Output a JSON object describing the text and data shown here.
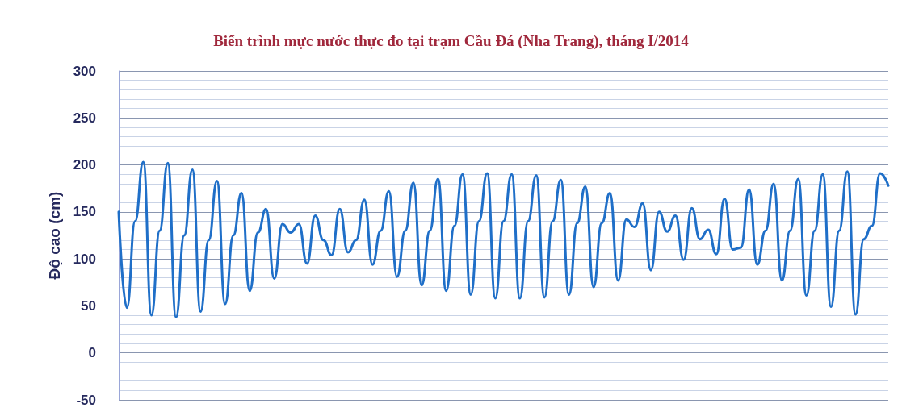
{
  "chart_data": {
    "type": "line",
    "title": "Biến trình mực nước thực đo tại trạm Cầu Đá (Nha Trang), tháng I/2014",
    "ylabel": "Độ cao (cm)",
    "categories": [
      null,
      null,
      null,
      null,
      null,
      null,
      null,
      null,
      null,
      null,
      null,
      null,
      null,
      null,
      null,
      null,
      null,
      null,
      null,
      null,
      null,
      null,
      null,
      null,
      null,
      null,
      null,
      null,
      null,
      null,
      null,
      null,
      null,
      null,
      null,
      null,
      null,
      null,
      null,
      null,
      null,
      null,
      null,
      null,
      null,
      null,
      null,
      null,
      null,
      null,
      null,
      null,
      null,
      null,
      null,
      null,
      null,
      null,
      null,
      null,
      null,
      null,
      null,
      null,
      null,
      null,
      null,
      null,
      null,
      null,
      null,
      null,
      null,
      null,
      null,
      null,
      null,
      null,
      null,
      null,
      null,
      null,
      null,
      null,
      null,
      null,
      null,
      null,
      null,
      null,
      null,
      null,
      null,
      null,
      null
    ],
    "series": [
      {
        "color": "#1f6fc8",
        "values": [
          150,
          48,
          140,
          203,
          40,
          130,
          202,
          38,
          125,
          195,
          44,
          120,
          183,
          52,
          125,
          170,
          66,
          128,
          153,
          79,
          137,
          128,
          137,
          95,
          146,
          120,
          104,
          153,
          107,
          120,
          163,
          94,
          130,
          172,
          81,
          130,
          181,
          72,
          130,
          185,
          66,
          135,
          190,
          62,
          140,
          191,
          58,
          140,
          190,
          58,
          140,
          189,
          59,
          140,
          184,
          62,
          138,
          177,
          70,
          138,
          170,
          77,
          142,
          134,
          159,
          88,
          150,
          129,
          146,
          99,
          154,
          121,
          131,
          105,
          164,
          110,
          112,
          174,
          94,
          130,
          180,
          77,
          130,
          185,
          61,
          130,
          190,
          49,
          130,
          193,
          41,
          121,
          135,
          191,
          178
        ]
      }
    ],
    "ylim": [
      -50,
      300
    ],
    "yticks": [
      -50,
      0,
      50,
      100,
      150,
      200,
      250,
      300
    ],
    "grid": "y",
    "tick_labels": "y",
    "marker": "none",
    "line_style": "solid"
  }
}
